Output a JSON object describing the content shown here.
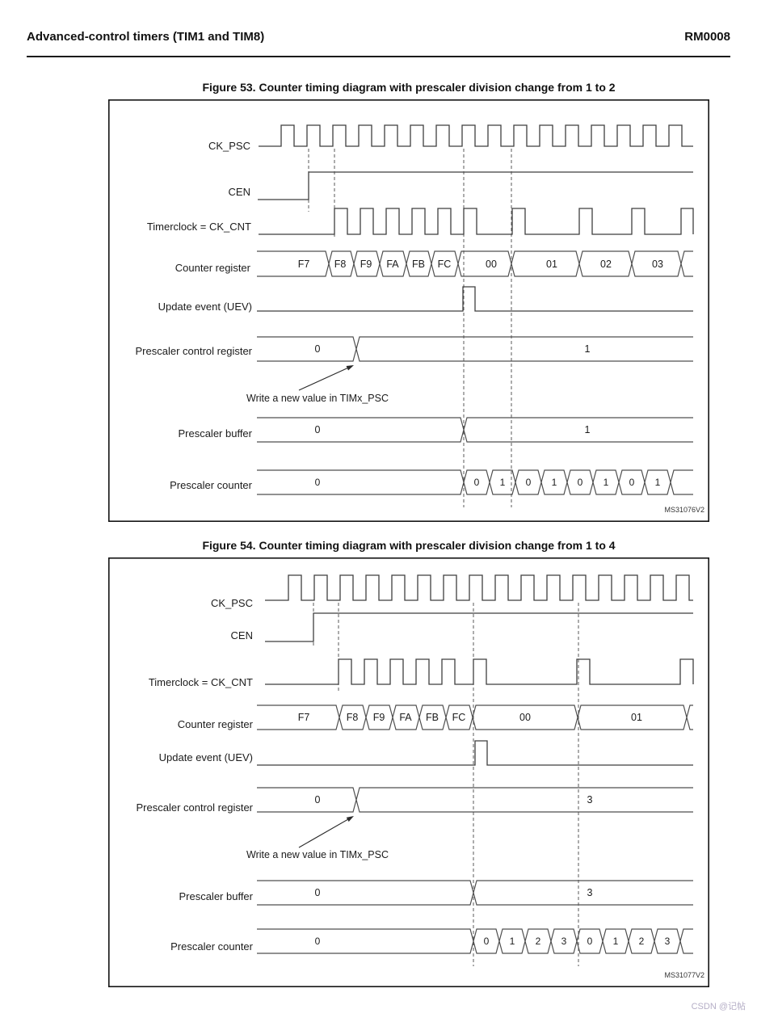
{
  "page": {
    "watermark": "CSDN @记帖",
    "watermark_color": "#b5aec6"
  },
  "header": {
    "left": "Advanced-control timers (TIM1 and TIM8)",
    "right": "RM0008"
  },
  "figures": [
    {
      "title": "Figure 53. Counter timing diagram with prescaler division change from 1 to 2",
      "ms_code": "MS31076V2",
      "signals": {
        "clock": "CK_PSC",
        "enable": "CEN",
        "timer_clock": "Timerclock = CK_CNT",
        "counter": "Counter register",
        "update_event": "Update event (UEV)",
        "prescaler_control": "Prescaler control register",
        "prescaler_buffer": "Prescaler buffer",
        "prescaler_counter": "Prescaler counter"
      },
      "annotation": "Write a new value in TIMx_PSC",
      "counter_values": [
        "F7",
        "F8",
        "F9",
        "FA",
        "FB",
        "FC",
        "00",
        "01",
        "02",
        "03"
      ],
      "prescaler_control_values": [
        "0",
        "1"
      ],
      "prescaler_buffer_values": [
        "0",
        "1"
      ],
      "prescaler_counter_values": [
        "0",
        "0",
        "1",
        "0",
        "1",
        "0",
        "1",
        "0",
        "1"
      ]
    },
    {
      "title": "Figure 54. Counter timing diagram with prescaler division change from 1 to 4",
      "ms_code": "MS31077V2",
      "signals": {
        "clock": "CK_PSC",
        "enable": "CEN",
        "timer_clock": "Timerclock = CK_CNT",
        "counter": "Counter register",
        "update_event": "Update event (UEV)",
        "prescaler_control": "Prescaler control register",
        "prescaler_buffer": "Prescaler buffer",
        "prescaler_counter": "Prescaler counter"
      },
      "annotation": "Write a new value in TIMx_PSC",
      "counter_values": [
        "F7",
        "F8",
        "F9",
        "FA",
        "FB",
        "FC",
        "00",
        "01"
      ],
      "prescaler_control_values": [
        "0",
        "3"
      ],
      "prescaler_buffer_values": [
        "0",
        "3"
      ],
      "prescaler_counter_values": [
        "0",
        "0",
        "1",
        "2",
        "3",
        "0",
        "1",
        "2",
        "3"
      ]
    }
  ]
}
